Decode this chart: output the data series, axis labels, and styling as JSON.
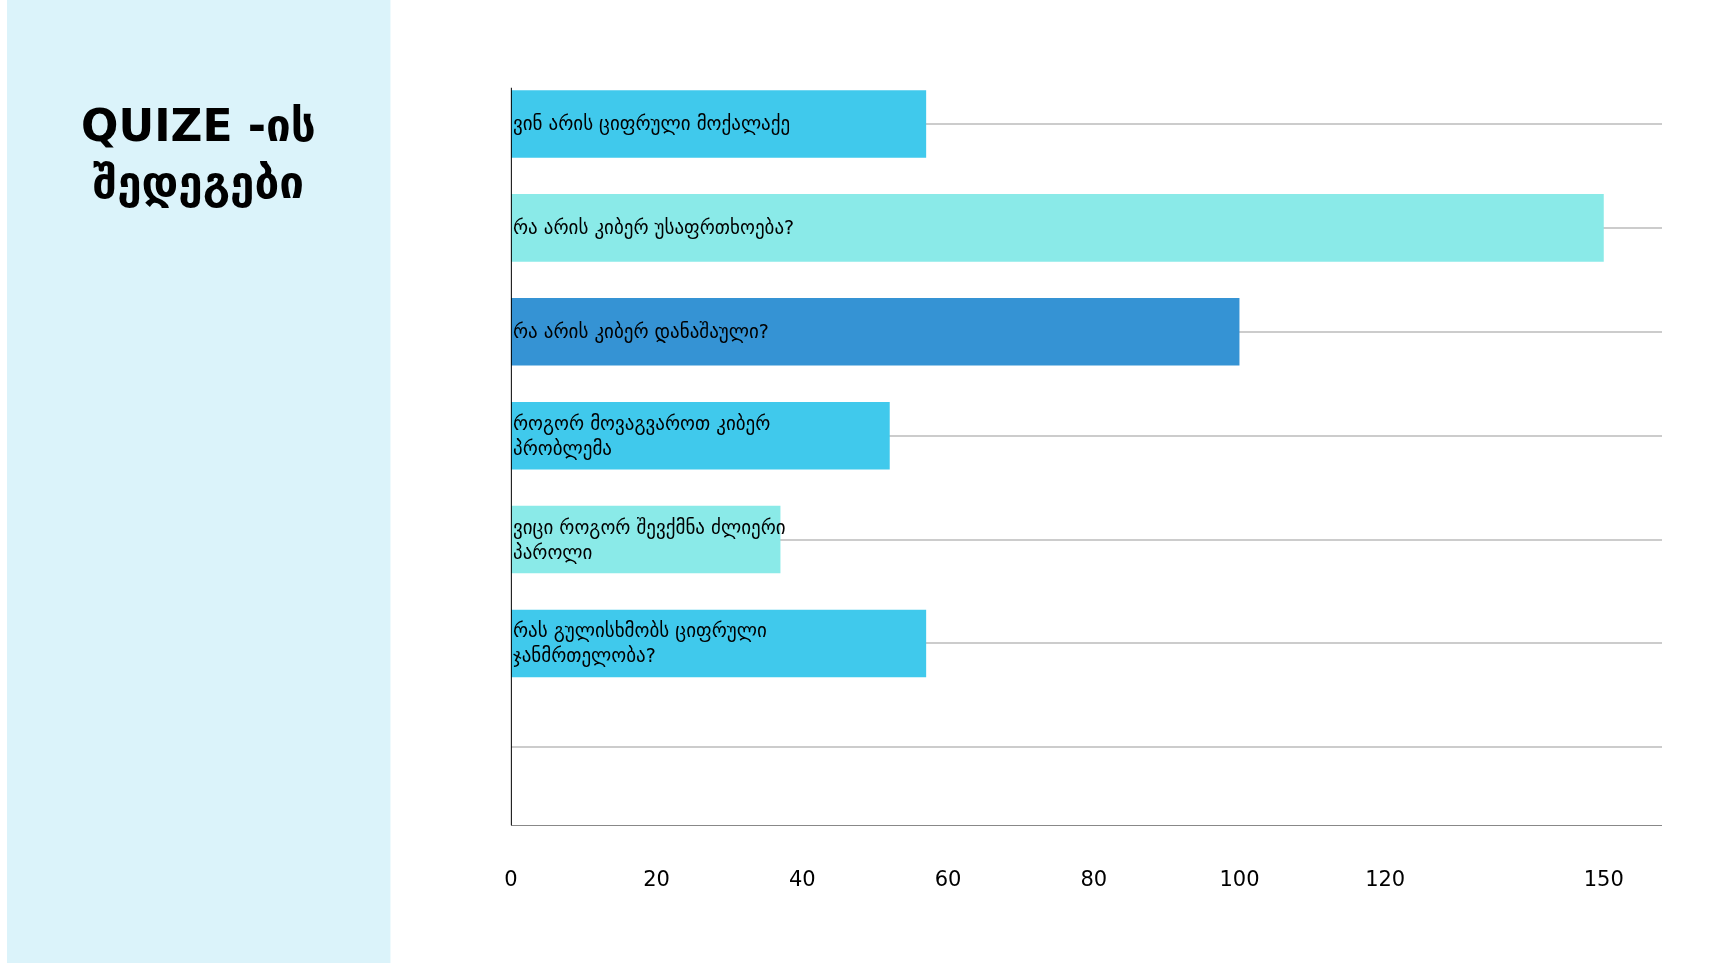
{
  "chart_data": {
    "type": "bar",
    "orientation": "horizontal",
    "title": "QUIZE -ის შედეგები",
    "categories": [
      "ვინ არის ციფრული მოქალაქე",
      "რა არის კიბერ უსაფრთხოება?",
      "რა არის კიბერ დანაშაული?",
      "როგორ მოვაგვაროთ კიბერ პრობლემა",
      "ვიცი როგორ შევქმნა ძლიერი პაროლი",
      "რას გულისხმობს ციფრული ჯანმრთელობა?",
      null
    ],
    "values": [
      57,
      150,
      100,
      52,
      37,
      57,
      null
    ],
    "colors": [
      "#40c9ec",
      "#8aeae8",
      "#3593d4",
      "#40c9ec",
      "#8aeae8",
      "#40c9ec",
      "#40c9ec"
    ],
    "xlim": [
      0,
      158
    ],
    "xticks": [
      0,
      20,
      40,
      60,
      80,
      100,
      120,
      150
    ],
    "grid": "y",
    "tick_labels": "x"
  }
}
